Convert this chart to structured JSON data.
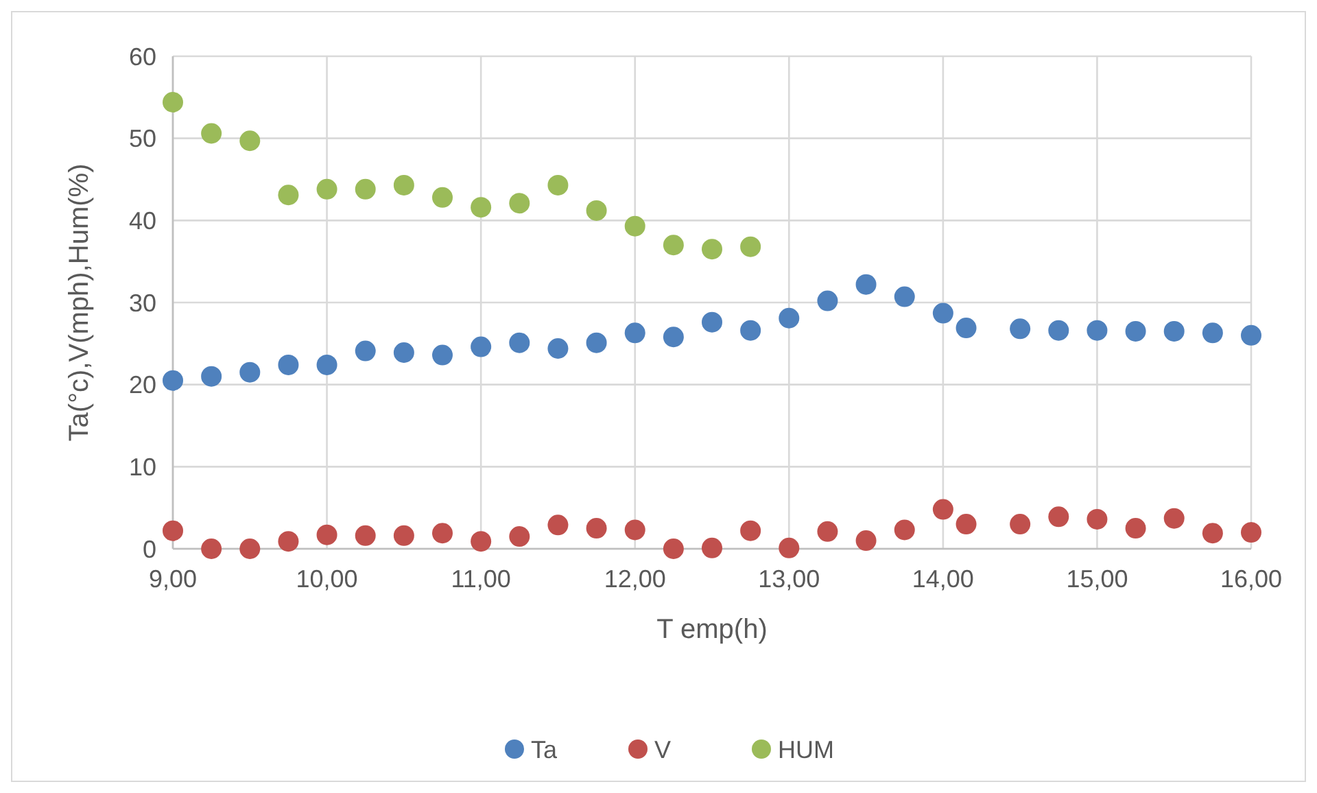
{
  "chart_data": {
    "type": "scatter",
    "xlabel": "T emp(h)",
    "ylabel": "Ta(°c),V(mph),Hum(%)",
    "xlim": [
      9,
      16
    ],
    "xticks": [
      {
        "value": 9,
        "label": "9,00"
      },
      {
        "value": 10,
        "label": "10,00"
      },
      {
        "value": 11,
        "label": "11,00"
      },
      {
        "value": 12,
        "label": "12,00"
      },
      {
        "value": 13,
        "label": "13,00"
      },
      {
        "value": 14,
        "label": "14,00"
      },
      {
        "value": 15,
        "label": "15,00"
      },
      {
        "value": 16,
        "label": "16,00"
      }
    ],
    "ylim": [
      0,
      60
    ],
    "yticks": [
      0,
      10,
      20,
      30,
      40,
      50,
      60
    ],
    "grid": true,
    "legend": "bottom",
    "marker": "circle",
    "series": [
      {
        "name": "Ta",
        "color": "#4f81bd",
        "x": [
          9,
          9.25,
          9.5,
          9.75,
          10,
          10.25,
          10.5,
          10.75,
          11,
          11.25,
          11.5,
          11.75,
          12,
          12.25,
          12.5,
          12.75,
          13,
          13.25,
          13.5,
          13.75,
          14,
          14.15,
          14.5,
          14.75,
          15,
          15.25,
          15.5,
          15.75,
          16
        ],
        "values": [
          20.5,
          21.0,
          21.5,
          22.4,
          22.4,
          24.1,
          23.9,
          23.6,
          24.6,
          25.1,
          24.4,
          25.1,
          26.3,
          25.8,
          27.6,
          26.6,
          28.1,
          30.2,
          32.2,
          30.7,
          28.7,
          26.9,
          26.8,
          26.6,
          26.6,
          26.5,
          26.5,
          26.3,
          26.0
        ]
      },
      {
        "name": "V",
        "color": "#c0504d",
        "x": [
          9,
          9.25,
          9.5,
          9.75,
          10,
          10.25,
          10.5,
          10.75,
          11,
          11.25,
          11.5,
          11.75,
          12,
          12.25,
          12.5,
          12.75,
          13,
          13.25,
          13.5,
          13.75,
          14,
          14.15,
          14.5,
          14.75,
          15,
          15.25,
          15.5,
          15.75,
          16
        ],
        "values": [
          2.2,
          0,
          0,
          0.9,
          1.7,
          1.6,
          1.6,
          1.9,
          0.9,
          1.5,
          2.9,
          2.5,
          2.3,
          0,
          0.1,
          2.2,
          0.1,
          2.1,
          1.0,
          2.3,
          4.8,
          3.0,
          3.0,
          3.9,
          3.6,
          2.5,
          3.7,
          1.9,
          2.0
        ]
      },
      {
        "name": "HUM",
        "color": "#9bbb59",
        "x": [
          9,
          9.25,
          9.5,
          9.75,
          10,
          10.25,
          10.5,
          10.75,
          11,
          11.25,
          11.5,
          11.75,
          12,
          12.25,
          12.5,
          12.75
        ],
        "values": [
          54.4,
          50.6,
          49.7,
          43.1,
          43.8,
          43.8,
          44.3,
          42.8,
          41.6,
          42.1,
          44.3,
          41.2,
          39.3,
          37.0,
          36.5,
          36.8
        ]
      }
    ]
  }
}
